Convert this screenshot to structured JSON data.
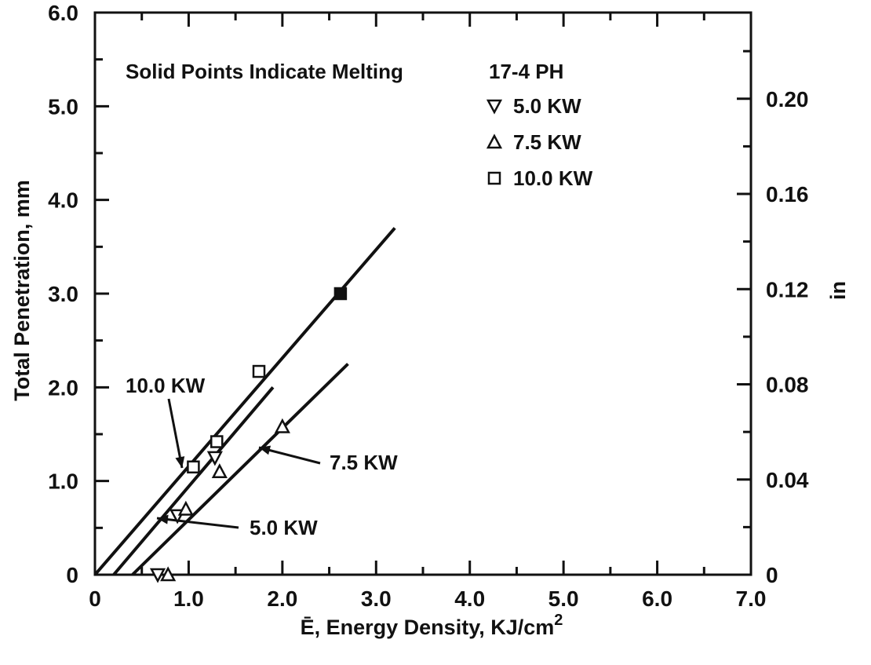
{
  "chart_data": {
    "type": "scatter",
    "xlabel_prefix": "Ē, Energy Density, KJ/cm",
    "xlabel_sup": "2",
    "ylabel": "Total Penetration, mm",
    "ylabel_right": "in",
    "xlim": [
      0,
      7.0
    ],
    "ylim": [
      0,
      6.0
    ],
    "x_ticks": [
      "0",
      "1.0",
      "2.0",
      "3.0",
      "4.0",
      "5.0",
      "6.0",
      "7.0"
    ],
    "y_ticks": [
      "0",
      "1.0",
      "2.0",
      "3.0",
      "4.0",
      "5.0",
      "6.0"
    ],
    "y_right_ticks": [
      "0",
      "0.04",
      "0.08",
      "0.12",
      "0.16",
      "0.20"
    ],
    "y_right_tick_values_in": [
      0,
      0.04,
      0.08,
      0.12,
      0.16,
      0.2
    ],
    "annotation": "Solid Points Indicate Melting",
    "legend_title": "17-4 PH",
    "legend_placement": "top-right",
    "series": [
      {
        "name": "5.0 KW",
        "marker": "triangle-down",
        "points": [
          {
            "x": 0.67,
            "y": 0.0,
            "solid": false
          },
          {
            "x": 0.88,
            "y": 0.63,
            "solid": false
          },
          {
            "x": 1.28,
            "y": 1.25,
            "solid": false
          }
        ],
        "fit": [
          [
            0.2,
            0.0
          ],
          [
            1.9,
            2.0
          ]
        ],
        "fit_label": "5.0 KW"
      },
      {
        "name": "7.5 KW",
        "marker": "triangle-up",
        "points": [
          {
            "x": 0.78,
            "y": 0.0,
            "solid": false
          },
          {
            "x": 0.97,
            "y": 0.7,
            "solid": false
          },
          {
            "x": 1.33,
            "y": 1.1,
            "solid": false
          },
          {
            "x": 2.0,
            "y": 1.58,
            "solid": false
          }
        ],
        "fit": [
          [
            0.4,
            0.0
          ],
          [
            2.7,
            2.25
          ]
        ],
        "fit_label": "7.5 KW"
      },
      {
        "name": "10.0 KW",
        "marker": "square",
        "points": [
          {
            "x": 1.05,
            "y": 1.15,
            "solid": false
          },
          {
            "x": 1.3,
            "y": 1.42,
            "solid": false
          },
          {
            "x": 1.75,
            "y": 2.17,
            "solid": false
          },
          {
            "x": 2.62,
            "y": 3.0,
            "solid": true
          }
        ],
        "fit": [
          [
            0.0,
            0.0
          ],
          [
            3.2,
            3.7
          ]
        ],
        "fit_label": "10.0 KW"
      }
    ]
  }
}
